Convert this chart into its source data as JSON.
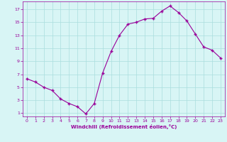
{
  "x": [
    0,
    1,
    2,
    3,
    4,
    5,
    6,
    7,
    8,
    9,
    10,
    11,
    12,
    13,
    14,
    15,
    16,
    17,
    18,
    19,
    20,
    21,
    22,
    23
  ],
  "y": [
    6.3,
    5.8,
    5.0,
    4.5,
    3.2,
    2.5,
    2.0,
    0.9,
    2.5,
    7.2,
    10.5,
    13.0,
    14.7,
    15.0,
    15.5,
    15.6,
    16.7,
    17.5,
    16.5,
    15.2,
    13.2,
    11.2,
    10.7,
    9.5
  ],
  "line_color": "#990099",
  "marker": "+",
  "marker_size": 3,
  "bg_color": "#d8f5f5",
  "grid_color": "#aadddd",
  "xlabel": "Windchill (Refroidissement éolien,°C)",
  "xlabel_color": "#990099",
  "tick_color": "#990099",
  "yticks": [
    1,
    3,
    5,
    7,
    9,
    11,
    13,
    15,
    17
  ],
  "xticks": [
    0,
    1,
    2,
    3,
    4,
    5,
    6,
    7,
    8,
    9,
    10,
    11,
    12,
    13,
    14,
    15,
    16,
    17,
    18,
    19,
    20,
    21,
    22,
    23
  ],
  "ylim": [
    0.5,
    18.2
  ],
  "xlim": [
    -0.5,
    23.5
  ]
}
